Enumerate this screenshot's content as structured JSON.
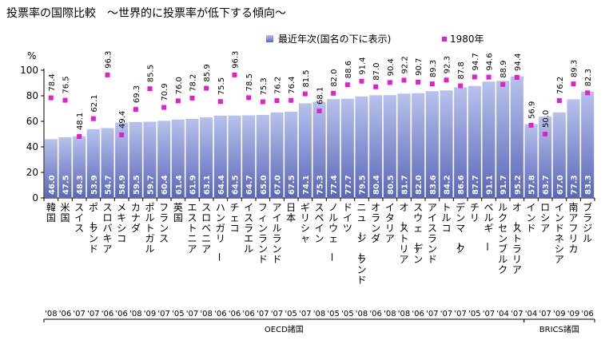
{
  "title": "投票率の国際比較　〜世界的に投票率が低下する傾向〜",
  "chart_data": {
    "type": "bar",
    "unit": "%",
    "ylim": [
      0,
      100
    ],
    "yticks": [
      0,
      20,
      40,
      60,
      80,
      100
    ],
    "grid": false,
    "legend_position": "top-right",
    "colors": {
      "bar_top": "#b8c2ec",
      "bar_bottom": "#5a67b8",
      "marker": "#e020c8",
      "axis": "#000000"
    },
    "series": [
      {
        "name": "最近年次(国名の下に表示)",
        "values": [
          46.0,
          47.5,
          48.3,
          53.9,
          54.7,
          58.9,
          59.5,
          59.7,
          60.4,
          61.4,
          61.9,
          63.1,
          64.4,
          64.5,
          64.7,
          65.0,
          67.0,
          67.5,
          74.1,
          75.3,
          77.4,
          77.7,
          79.5,
          80.4,
          80.5,
          81.7,
          82.0,
          83.6,
          84.2,
          86.6,
          87.7,
          91.1,
          91.7,
          95.2,
          57.8,
          63.7,
          67.0,
          77.3,
          83.3
        ]
      },
      {
        "name": "1980年",
        "values": [
          78.4,
          76.5,
          48.1,
          62.1,
          96.3,
          49.4,
          69.3,
          85.5,
          70.9,
          76.0,
          78.2,
          85.9,
          75.5,
          96.3,
          78.5,
          75.3,
          76.2,
          76.4,
          81.5,
          68.1,
          82.0,
          88.6,
          91.4,
          87.0,
          90.4,
          92.2,
          90.7,
          89.3,
          92.3,
          87.8,
          94.7,
          94.6,
          88.9,
          94.4,
          56.9,
          50.0,
          76.2,
          89.3,
          82.3
        ]
      }
    ],
    "categories": [
      "韓国",
      "米国",
      "スイス",
      "ポーランド",
      "スロバキア",
      "メキシコ",
      "カナダ",
      "ポルトガル",
      "フランス",
      "英国",
      "エストニア",
      "スロベニア",
      "ハンガリー",
      "チェコ",
      "イスラエル",
      "フィンランド",
      "アイルランド",
      "日本",
      "ギリシャ",
      "スペイン",
      "ノルウェー",
      "ドイツ",
      "ニュージーランド",
      "オランダ",
      "イタリア",
      "オーストリア",
      "スウェーデン",
      "アイスランド",
      "トルコ",
      "デンマーク",
      "チリ",
      "ベルギー",
      "ルクセンブルク",
      "オーストラリア",
      "インド",
      "ロシア",
      "インドネシア",
      "南アフリカ",
      "ブラジル"
    ],
    "years": [
      "'08",
      "'06",
      "'07",
      "'07",
      "'06",
      "'06",
      "'08",
      "'09",
      "'07",
      "'05",
      "'07",
      "'08",
      "'06",
      "'06",
      "'06",
      "'07",
      "'07",
      "'05",
      "'07",
      "'08",
      "'05",
      "'05",
      "'08",
      "'06",
      "'08",
      "'08",
      "'06",
      "'07",
      "'07",
      "'07",
      "'05",
      "'07",
      "'04",
      "'07",
      "'04",
      "'07",
      "'09",
      "'09",
      "'06"
    ],
    "groups": [
      {
        "label": "OECD諸国",
        "count": 34
      },
      {
        "label": "BRICS諸国",
        "count": 5
      }
    ]
  }
}
